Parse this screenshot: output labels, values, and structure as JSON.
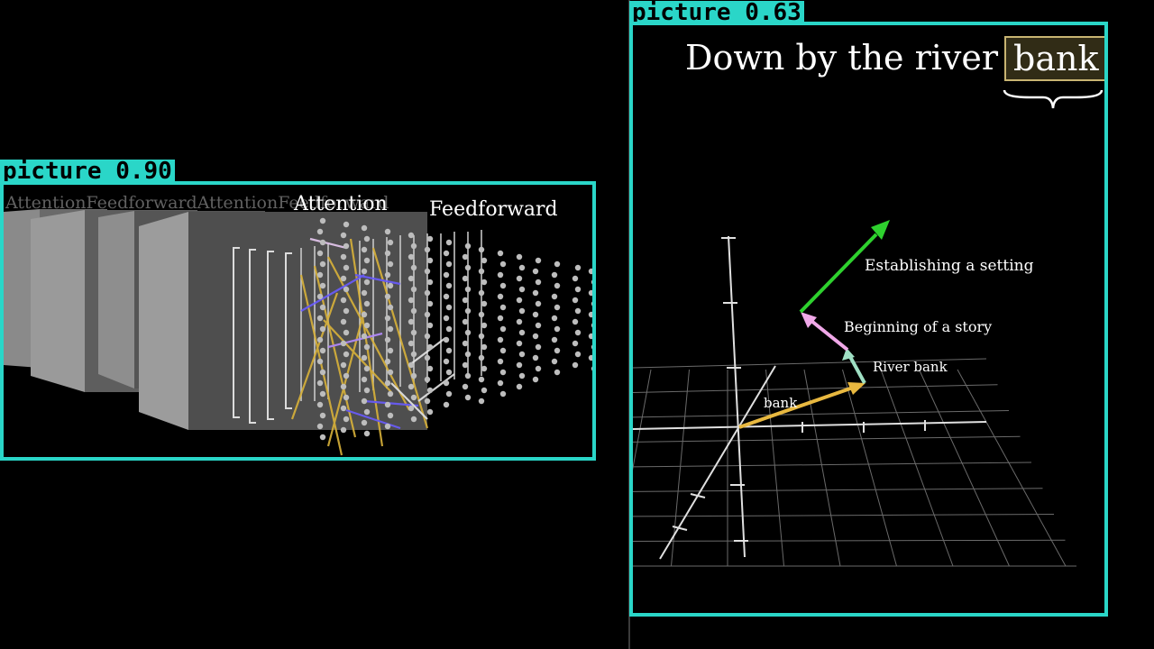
{
  "detections": [
    {
      "label": "picture 0.90"
    },
    {
      "label": "picture 0.63"
    }
  ],
  "left_scene": {
    "labels": {
      "attention": "Attention",
      "feedforward": "Feedforward",
      "ghost": "AttentionFeedforwardAttentionFeedforward"
    },
    "colors": {
      "block": "#6e6e6e",
      "lines_gold": "#d9b23a",
      "lines_blue": "#6a5cff",
      "dots": "#bdbdbd"
    }
  },
  "right_scene": {
    "title_text": "Down by the river",
    "title_highlight": "bank",
    "vector_labels": {
      "bank": "bank",
      "river_bank": "River bank",
      "beginning_story": "Beginning of a story",
      "establishing_setting": "Establishing a setting"
    },
    "colors": {
      "bank_vec": "#e8b840",
      "river_bank_vec": "#9fe0c4",
      "beginning_vec": "#f0a8e8",
      "establishing_vec": "#2ed12e",
      "highlight_border": "#c8b472"
    }
  }
}
